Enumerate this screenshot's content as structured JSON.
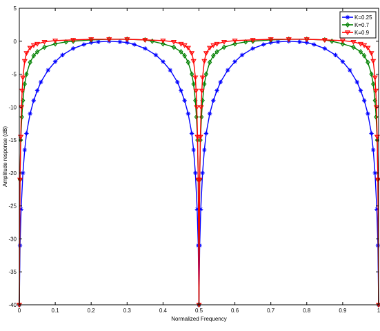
{
  "chart_data": {
    "type": "line",
    "xlabel": "Normalized Frequency",
    "ylabel": "Amplitude response (dB)",
    "xlim": [
      0,
      1
    ],
    "ylim": [
      -40,
      5
    ],
    "xticks": [
      0,
      0.1,
      0.2,
      0.3,
      0.4,
      0.5,
      0.6,
      0.7,
      0.8,
      0.9,
      1
    ],
    "xtick_labels": [
      "0",
      "0.1",
      "0.2",
      "0.3",
      "0.4",
      "0.5",
      "0.6",
      "0.7",
      "0.8",
      "0.9",
      "1"
    ],
    "yticks": [
      5,
      0,
      -5,
      -10,
      -15,
      -20,
      -25,
      -30,
      -35,
      -40
    ],
    "ytick_labels": [
      "5",
      "0",
      "-5",
      "-10",
      "-15",
      "-20",
      "-25",
      "-30",
      "-35",
      "-40"
    ],
    "grid": false,
    "legend_position": "top-right",
    "series": [
      {
        "name": "K=0.25",
        "color": "#0000ff",
        "marker": "star",
        "x": [
          0.0,
          0.002,
          0.005,
          0.01,
          0.015,
          0.02,
          0.03,
          0.04,
          0.05,
          0.06,
          0.08,
          0.1,
          0.12,
          0.15,
          0.18,
          0.2,
          0.22,
          0.25,
          0.28,
          0.3,
          0.32,
          0.35,
          0.38,
          0.4,
          0.42,
          0.44,
          0.45,
          0.46,
          0.47,
          0.48,
          0.485,
          0.49,
          0.495,
          0.498,
          0.5,
          0.502,
          0.505,
          0.51,
          0.515,
          0.52,
          0.53,
          0.54,
          0.55,
          0.56,
          0.58,
          0.6,
          0.62,
          0.65,
          0.68,
          0.7,
          0.72,
          0.75,
          0.78,
          0.8,
          0.82,
          0.85,
          0.88,
          0.9,
          0.92,
          0.94,
          0.95,
          0.96,
          0.97,
          0.98,
          0.985,
          0.99,
          0.995,
          0.998,
          1.0
        ],
        "y": [
          -40,
          -31,
          -25.5,
          -20,
          -16.5,
          -14,
          -11,
          -9,
          -7.5,
          -6.2,
          -4.4,
          -3.1,
          -2.1,
          -1.1,
          -0.5,
          -0.2,
          -0.1,
          0.0,
          -0.1,
          -0.2,
          -0.5,
          -1.1,
          -2.1,
          -3.1,
          -4.4,
          -6.2,
          -7.5,
          -9,
          -11,
          -14,
          -16.5,
          -20,
          -25.5,
          -31,
          -40,
          -31,
          -25.5,
          -20,
          -16.5,
          -14,
          -11,
          -9,
          -7.5,
          -6.2,
          -4.4,
          -3.1,
          -2.1,
          -1.1,
          -0.5,
          -0.2,
          -0.1,
          0.0,
          -0.1,
          -0.2,
          -0.5,
          -1.1,
          -2.1,
          -3.1,
          -4.4,
          -6.2,
          -7.5,
          -9,
          -11,
          -14,
          -16.5,
          -20,
          -25.5,
          -31,
          -40
        ]
      },
      {
        "name": "K=0.7",
        "color": "#008000",
        "marker": "diamond",
        "x": [
          0.0,
          0.002,
          0.004,
          0.007,
          0.01,
          0.015,
          0.02,
          0.03,
          0.04,
          0.05,
          0.07,
          0.1,
          0.13,
          0.15,
          0.2,
          0.25,
          0.3,
          0.35,
          0.37,
          0.4,
          0.43,
          0.45,
          0.46,
          0.47,
          0.48,
          0.485,
          0.49,
          0.493,
          0.496,
          0.498,
          0.5,
          0.502,
          0.504,
          0.507,
          0.51,
          0.515,
          0.52,
          0.53,
          0.54,
          0.55,
          0.57,
          0.6,
          0.63,
          0.65,
          0.7,
          0.75,
          0.8,
          0.85,
          0.87,
          0.9,
          0.93,
          0.95,
          0.96,
          0.97,
          0.98,
          0.985,
          0.99,
          0.993,
          0.996,
          0.998,
          1.0
        ],
        "y": [
          -40,
          -21,
          -15,
          -11.5,
          -9,
          -6.5,
          -5,
          -3.2,
          -2.2,
          -1.6,
          -0.9,
          -0.4,
          -0.1,
          0.0,
          0.2,
          0.3,
          0.3,
          0.2,
          0.0,
          -0.4,
          -0.9,
          -1.6,
          -2.2,
          -3.2,
          -5,
          -6.5,
          -9,
          -11.5,
          -15,
          -21,
          -40,
          -21,
          -15,
          -11.5,
          -9,
          -6.5,
          -5,
          -3.2,
          -2.2,
          -1.6,
          -0.9,
          -0.4,
          -0.1,
          0.0,
          0.2,
          0.3,
          0.3,
          0.2,
          0.0,
          -0.4,
          -0.9,
          -1.6,
          -2.2,
          -3.2,
          -5,
          -6.5,
          -9,
          -11.5,
          -15,
          -21,
          -40
        ]
      },
      {
        "name": "K=0.9",
        "color": "#ff0000",
        "marker": "triangle-down",
        "x": [
          0.0,
          0.002,
          0.004,
          0.006,
          0.008,
          0.01,
          0.015,
          0.02,
          0.03,
          0.04,
          0.05,
          0.07,
          0.1,
          0.15,
          0.2,
          0.25,
          0.3,
          0.35,
          0.4,
          0.43,
          0.45,
          0.46,
          0.47,
          0.48,
          0.485,
          0.49,
          0.492,
          0.494,
          0.496,
          0.498,
          0.5,
          0.502,
          0.504,
          0.506,
          0.508,
          0.51,
          0.515,
          0.52,
          0.53,
          0.54,
          0.55,
          0.57,
          0.6,
          0.65,
          0.7,
          0.75,
          0.8,
          0.85,
          0.9,
          0.93,
          0.95,
          0.96,
          0.97,
          0.98,
          0.985,
          0.99,
          0.992,
          0.994,
          0.996,
          0.998,
          1.0
        ],
        "y": [
          -40,
          -21,
          -14.5,
          -10,
          -7.5,
          -5.5,
          -3,
          -1.8,
          -1.0,
          -0.6,
          -0.4,
          -0.1,
          0.1,
          0.2,
          0.3,
          0.3,
          0.3,
          0.2,
          0.1,
          -0.1,
          -0.4,
          -0.6,
          -1.0,
          -1.8,
          -3,
          -5.5,
          -7.5,
          -10,
          -14.5,
          -21,
          -40,
          -21,
          -14.5,
          -10,
          -7.5,
          -5.5,
          -3,
          -1.8,
          -1.0,
          -0.6,
          -0.4,
          -0.1,
          0.1,
          0.2,
          0.3,
          0.3,
          0.3,
          0.2,
          0.1,
          -0.1,
          -0.4,
          -0.6,
          -1.0,
          -1.8,
          -3,
          -5.5,
          -7.5,
          -10,
          -14.5,
          -21,
          -40
        ]
      }
    ]
  }
}
